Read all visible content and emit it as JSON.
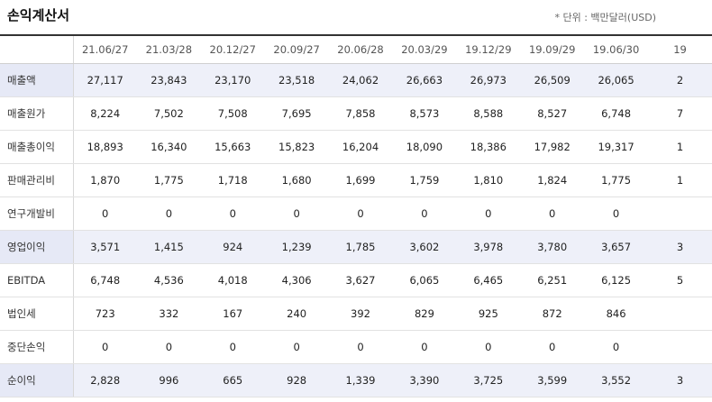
{
  "header": {
    "title": "손익계산서",
    "unit": "* 단위 : 백만달러(USD)"
  },
  "periods": [
    "21.06/27",
    "21.03/28",
    "20.12/27",
    "20.09/27",
    "20.06/28",
    "20.03/29",
    "19.12/29",
    "19.09/29",
    "19.06/30",
    "19"
  ],
  "rows": [
    {
      "label": "매출액",
      "highlight": true,
      "values": [
        "27,117",
        "23,843",
        "23,170",
        "23,518",
        "24,062",
        "26,663",
        "26,973",
        "26,509",
        "26,065",
        "2"
      ]
    },
    {
      "label": "매출원가",
      "highlight": false,
      "values": [
        "8,224",
        "7,502",
        "7,508",
        "7,695",
        "7,858",
        "8,573",
        "8,588",
        "8,527",
        "6,748",
        "7"
      ]
    },
    {
      "label": "매출총이익",
      "highlight": false,
      "values": [
        "18,893",
        "16,340",
        "15,663",
        "15,823",
        "16,204",
        "18,090",
        "18,386",
        "17,982",
        "19,317",
        "1"
      ]
    },
    {
      "label": "판매관리비",
      "highlight": false,
      "values": [
        "1,870",
        "1,775",
        "1,718",
        "1,680",
        "1,699",
        "1,759",
        "1,810",
        "1,824",
        "1,775",
        "1"
      ]
    },
    {
      "label": "연구개발비",
      "highlight": false,
      "values": [
        "0",
        "0",
        "0",
        "0",
        "0",
        "0",
        "0",
        "0",
        "0",
        ""
      ]
    },
    {
      "label": "영업이익",
      "highlight": true,
      "values": [
        "3,571",
        "1,415",
        "924",
        "1,239",
        "1,785",
        "3,602",
        "3,978",
        "3,780",
        "3,657",
        "3"
      ]
    },
    {
      "label": "EBITDA",
      "highlight": false,
      "values": [
        "6,748",
        "4,536",
        "4,018",
        "4,306",
        "3,627",
        "6,065",
        "6,465",
        "6,251",
        "6,125",
        "5"
      ]
    },
    {
      "label": "법인세",
      "highlight": false,
      "values": [
        "723",
        "332",
        "167",
        "240",
        "392",
        "829",
        "925",
        "872",
        "846",
        ""
      ]
    },
    {
      "label": "중단손익",
      "highlight": false,
      "values": [
        "0",
        "0",
        "0",
        "0",
        "0",
        "0",
        "0",
        "0",
        "0",
        ""
      ]
    },
    {
      "label": "순이익",
      "highlight": true,
      "values": [
        "2,828",
        "996",
        "665",
        "928",
        "1,339",
        "3,390",
        "3,725",
        "3,599",
        "3,552",
        "3"
      ]
    }
  ]
}
